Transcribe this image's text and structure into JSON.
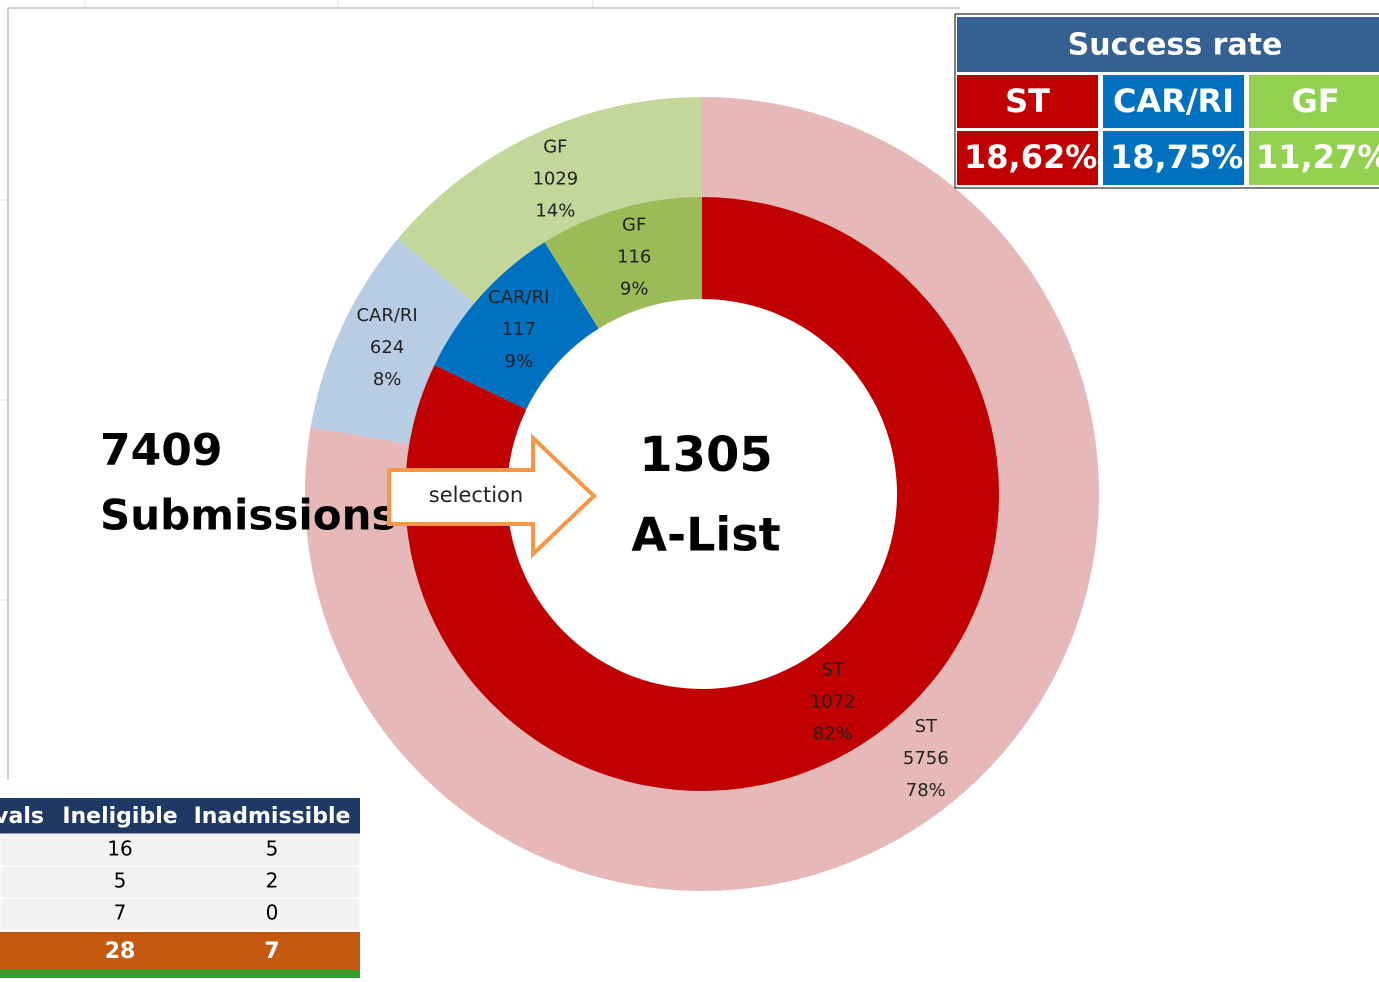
{
  "chart_data": {
    "type": "donut",
    "categories": [
      "ST",
      "CAR/RI",
      "GF"
    ],
    "series": [
      {
        "name": "Submissions",
        "total": 7409,
        "colors": [
          "#e6b8b7",
          "#b8cce4",
          "#c4d79b"
        ],
        "values": [
          5756,
          624,
          1029
        ],
        "percent_labels": [
          "78%",
          "8%",
          "14%"
        ]
      },
      {
        "name": "A-List",
        "total": 1305,
        "colors": [
          "#c00000",
          "#0070c0",
          "#9bbb59"
        ],
        "values": [
          1072,
          117,
          116
        ],
        "percent_labels": [
          "82%",
          "9%",
          "9%"
        ]
      }
    ],
    "annotation": "selection"
  },
  "success_rate": {
    "title": "Success rate",
    "headers": [
      "ST",
      "CAR/RI",
      "GF"
    ],
    "colors": [
      "#c00000",
      "#0070c0",
      "#92d050"
    ],
    "values": [
      "18,62%",
      "18,75%",
      "11,27%"
    ]
  },
  "stats_table": {
    "headers": [
      "vals",
      "Ineligible",
      "Inadmissible"
    ],
    "rows": [
      [
        "16",
        "5"
      ],
      [
        "5",
        "2"
      ],
      [
        "7",
        "0"
      ]
    ],
    "totals": [
      "28",
      "7"
    ]
  }
}
